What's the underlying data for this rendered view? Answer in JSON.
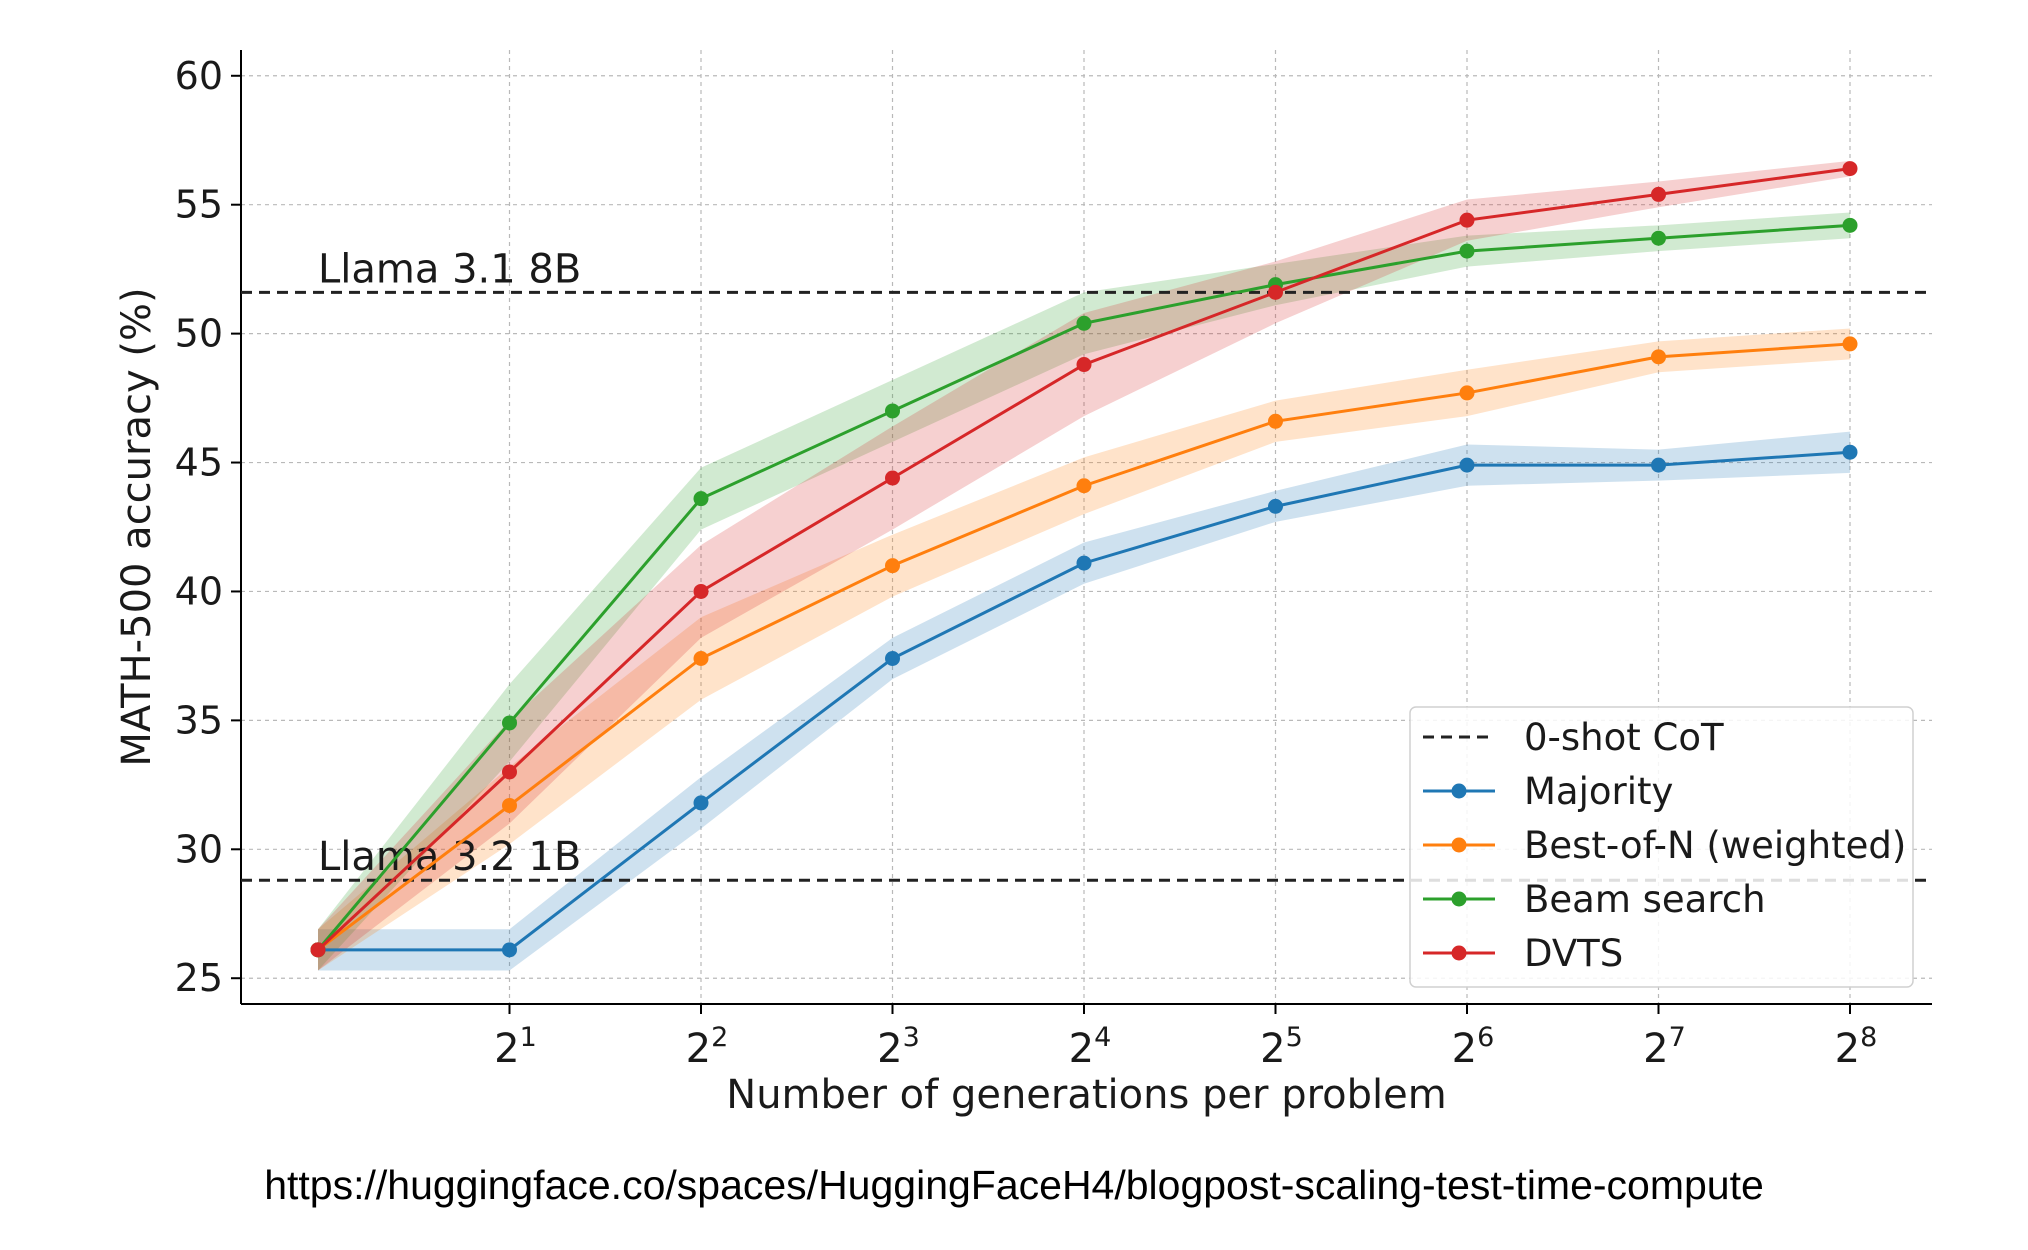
{
  "chart_data": {
    "type": "line",
    "xlabel": "Number of generations per problem",
    "ylabel": "MATH-500 accuracy (%)",
    "x_scale": "log2",
    "x": [
      1,
      2,
      4,
      8,
      16,
      32,
      64,
      128,
      256
    ],
    "xtick_labels": [
      {
        "x": 2,
        "base": "2",
        "exp": "1"
      },
      {
        "x": 4,
        "base": "2",
        "exp": "2"
      },
      {
        "x": 8,
        "base": "2",
        "exp": "3"
      },
      {
        "x": 16,
        "base": "2",
        "exp": "4"
      },
      {
        "x": 32,
        "base": "2",
        "exp": "5"
      },
      {
        "x": 64,
        "base": "2",
        "exp": "6"
      },
      {
        "x": 128,
        "base": "2",
        "exp": "7"
      },
      {
        "x": 256,
        "base": "2",
        "exp": "8"
      }
    ],
    "yticks": [
      25,
      30,
      35,
      40,
      45,
      50,
      55,
      60
    ],
    "ylim": [
      24,
      61
    ],
    "grid": true,
    "legend_position": "bottom-right",
    "series": [
      {
        "name": "Majority",
        "color": "#1f77b4",
        "values": [
          26.1,
          26.1,
          31.8,
          37.4,
          41.1,
          43.3,
          44.9,
          44.9,
          45.4
        ],
        "band_half": [
          0.8,
          0.8,
          1.0,
          0.8,
          0.8,
          0.6,
          0.8,
          0.6,
          0.8
        ]
      },
      {
        "name": "Best-of-N (weighted)",
        "color": "#ff7f0e",
        "values": [
          26.1,
          31.7,
          37.4,
          41.0,
          44.1,
          46.6,
          47.7,
          49.1,
          49.6
        ],
        "band_half": [
          0.8,
          1.5,
          1.6,
          1.2,
          1.1,
          0.8,
          0.9,
          0.6,
          0.6
        ]
      },
      {
        "name": "Beam search",
        "color": "#2ca02c",
        "values": [
          26.1,
          34.9,
          43.6,
          47.0,
          50.4,
          51.9,
          53.2,
          53.7,
          54.2
        ],
        "band_half": [
          0.8,
          1.5,
          1.2,
          1.2,
          1.2,
          0.8,
          0.6,
          0.5,
          0.5
        ]
      },
      {
        "name": "DVTS",
        "color": "#d62728",
        "values": [
          26.1,
          33.0,
          40.0,
          44.4,
          48.8,
          51.6,
          54.4,
          55.4,
          56.4
        ],
        "band_half": [
          0.8,
          2.0,
          1.8,
          2.0,
          2.0,
          1.2,
          0.8,
          0.5,
          0.3
        ]
      }
    ],
    "reference_lines": [
      {
        "name": "0-shot CoT",
        "y": 51.6,
        "label": "Llama 3.1 8B",
        "color": "#222222"
      },
      {
        "y": 28.8,
        "label": "Llama 3.2 1B",
        "color": "#222222"
      }
    ]
  },
  "caption": "https://huggingface.co/spaces/HuggingFaceH4/blogpost-scaling-test-time-compute"
}
